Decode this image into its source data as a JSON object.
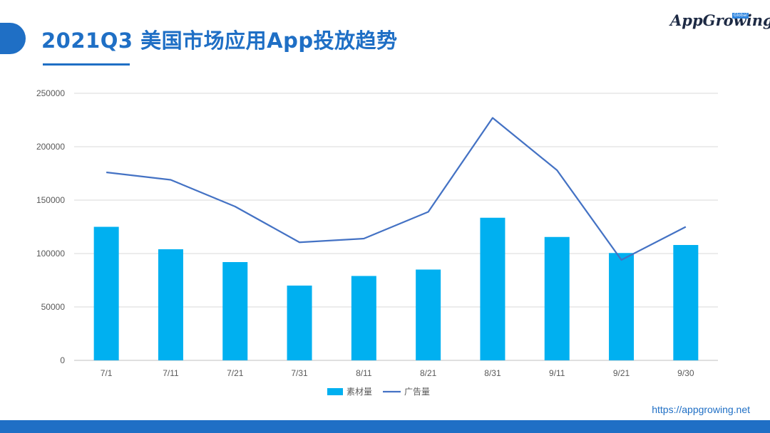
{
  "header": {
    "title": "2021Q3 美国市场应用App投放趋势"
  },
  "logo": {
    "wordmark": "AppGrowing",
    "badge": "Global"
  },
  "footer": {
    "url": "https://appgrowing.net"
  },
  "colors": {
    "accent": "#1f6fc5",
    "bar": "#00b0f0",
    "line": "#4472c4"
  },
  "chart_data": {
    "type": "bar",
    "title": "",
    "xlabel": "",
    "ylabel": "",
    "categories": [
      "7/1",
      "7/11",
      "7/21",
      "7/31",
      "8/11",
      "8/21",
      "8/31",
      "9/11",
      "9/21",
      "9/30"
    ],
    "yticks": [
      "0",
      "50000",
      "100000",
      "150000",
      "200000",
      "250000"
    ],
    "ylim": [
      0,
      250000
    ],
    "grid": true,
    "legend_position": "bottom-center",
    "series": [
      {
        "name": "素材量",
        "type": "bar",
        "values": [
          125000,
          104000,
          92000,
          70000,
          79000,
          85000,
          133500,
          115500,
          100500,
          108000
        ]
      },
      {
        "name": "广告量",
        "type": "line",
        "values": [
          176000,
          169000,
          144000,
          110500,
          114000,
          139000,
          227000,
          178000,
          94000,
          125000
        ]
      }
    ]
  }
}
